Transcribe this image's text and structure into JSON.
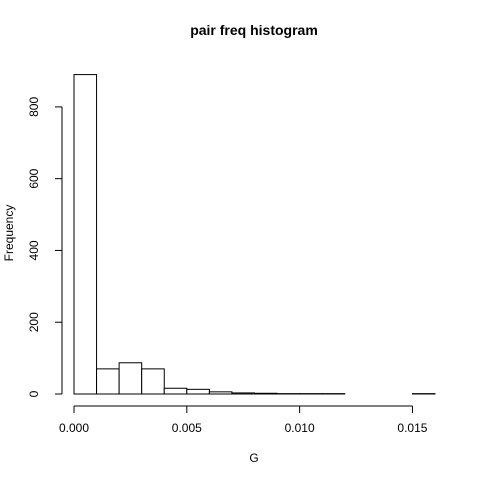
{
  "chart_data": {
    "type": "bar",
    "title": "pair freq histogram",
    "xlabel": "G",
    "ylabel": "Frequency",
    "bins": [
      {
        "from": 0.0,
        "to": 0.001,
        "count": 890
      },
      {
        "from": 0.001,
        "to": 0.002,
        "count": 70
      },
      {
        "from": 0.002,
        "to": 0.003,
        "count": 87
      },
      {
        "from": 0.003,
        "to": 0.004,
        "count": 70
      },
      {
        "from": 0.004,
        "to": 0.005,
        "count": 16
      },
      {
        "from": 0.005,
        "to": 0.006,
        "count": 13
      },
      {
        "from": 0.006,
        "to": 0.007,
        "count": 6
      },
      {
        "from": 0.007,
        "to": 0.008,
        "count": 3
      },
      {
        "from": 0.008,
        "to": 0.009,
        "count": 2
      },
      {
        "from": 0.009,
        "to": 0.01,
        "count": 1
      },
      {
        "from": 0.01,
        "to": 0.011,
        "count": 1
      },
      {
        "from": 0.011,
        "to": 0.012,
        "count": 1
      },
      {
        "from": 0.012,
        "to": 0.013,
        "count": 0
      },
      {
        "from": 0.013,
        "to": 0.014,
        "count": 0
      },
      {
        "from": 0.014,
        "to": 0.015,
        "count": 0
      },
      {
        "from": 0.015,
        "to": 0.016,
        "count": 1
      }
    ],
    "xlim": [
      0.0,
      0.016
    ],
    "ylim": [
      0,
      900
    ],
    "xticks": [
      0.0,
      0.005,
      0.01,
      0.015
    ],
    "xtick_labels": [
      "0.000",
      "0.005",
      "0.010",
      "0.015"
    ],
    "yticks": [
      0,
      200,
      400,
      600,
      800
    ],
    "ytick_labels": [
      "0",
      "200",
      "400",
      "600",
      "800"
    ],
    "grid": false,
    "legend": "none"
  }
}
